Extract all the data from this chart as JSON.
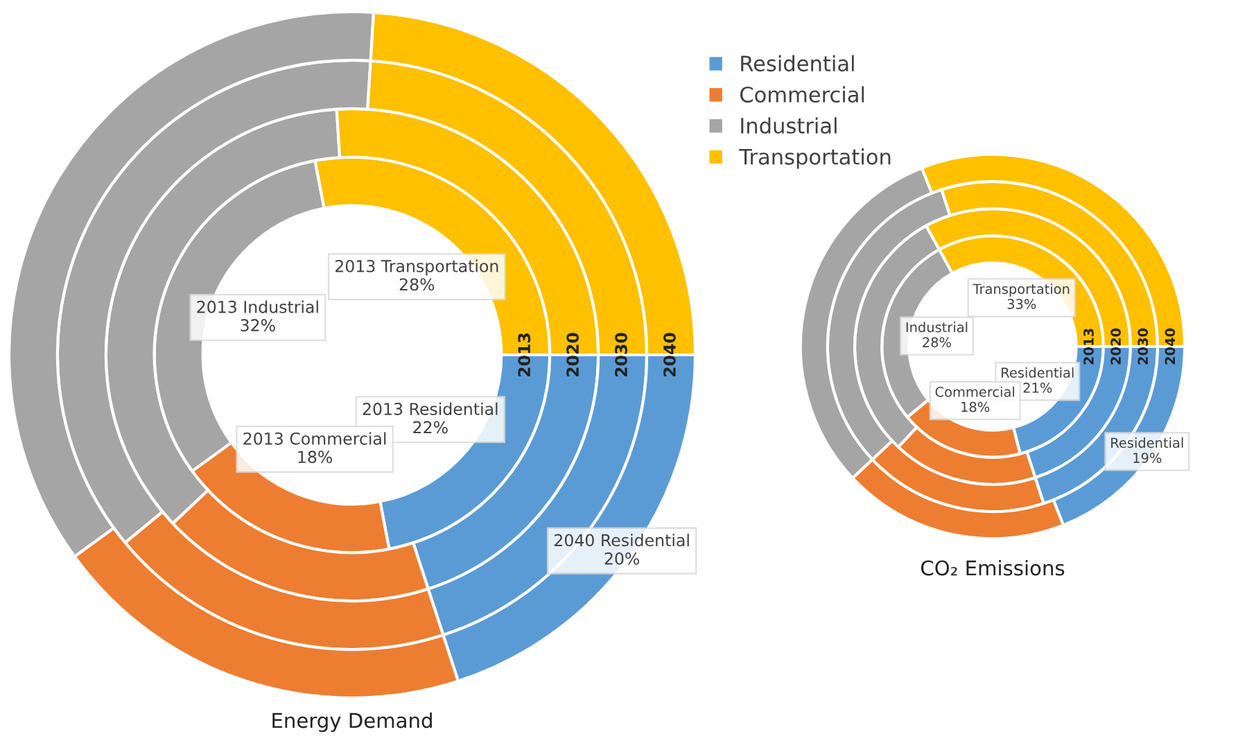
{
  "chart_data": [
    {
      "type": "donut",
      "title": "Energy Demand",
      "categories": [
        "Residential",
        "Commercial",
        "Industrial",
        "Transportation"
      ],
      "colors": [
        "#5b9bd5",
        "#ed7d31",
        "#a5a5a5",
        "#ffc000"
      ],
      "legend": "top right",
      "series": [
        {
          "name": "2013",
          "values": [
            22,
            18,
            32,
            28
          ],
          "value_labels": [
            "2013 Residential\n22%",
            "2013 Commercial\n18%",
            "2013 Industrial\n32%",
            "2013 Transportation\n28%"
          ]
        },
        {
          "name": "2020",
          "values": [
            20,
            18,
            36,
            26
          ]
        },
        {
          "name": "2030",
          "values": [
            20,
            19,
            37,
            24
          ]
        },
        {
          "name": "2040",
          "values": [
            20,
            20,
            36,
            24
          ],
          "value_labels": [
            "2040 Residential\n20%",
            null,
            null,
            null
          ]
        }
      ]
    },
    {
      "type": "donut",
      "title": "CO₂ Emissions",
      "categories": [
        "Residential",
        "Commercial",
        "Industrial",
        "Transportation"
      ],
      "colors": [
        "#5b9bd5",
        "#ed7d31",
        "#a5a5a5",
        "#ffc000"
      ],
      "series": [
        {
          "name": "2013",
          "values": [
            21,
            18,
            28,
            33
          ],
          "value_labels": [
            "21%",
            "18%",
            "28%",
            "33%"
          ]
        },
        {
          "name": "2020",
          "values": [
            20,
            17,
            30,
            33
          ]
        },
        {
          "name": "2030",
          "values": [
            20,
            18,
            32,
            30
          ]
        },
        {
          "name": "2040",
          "values": [
            19,
            19,
            31,
            31
          ],
          "value_labels": [
            "19%",
            null,
            null,
            null
          ]
        }
      ]
    }
  ]
}
